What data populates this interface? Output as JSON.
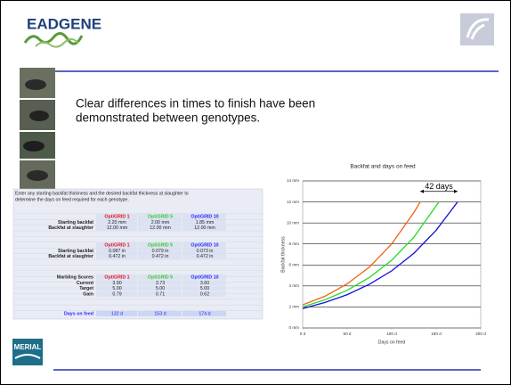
{
  "header": {
    "logo": "EADGENE"
  },
  "headline": [
    "Clear differences in times to finish have been",
    "demonstrated between genotypes."
  ],
  "table": {
    "intro": [
      "Enter any starting backfat thickness and the desired backfat thickness at slaughter to",
      "determine the days on feed required for each genotype."
    ],
    "groups": [
      {
        "columns": [
          "OptiGRID 1",
          "OptiGRID 5",
          "OptiGRID 10"
        ],
        "rows": [
          [
            "Starting backfat",
            "2.20 mm",
            "2.00 mm",
            "1.85 mm"
          ],
          [
            "Backfat at slaughter",
            "12.00 mm",
            "12.00 mm",
            "12.00 mm"
          ]
        ]
      },
      {
        "columns": [
          "OptiGRID 1",
          "OptiGRID 5",
          "OptiGRID 10"
        ],
        "rows": [
          [
            "Starting backfat",
            "0.087 in",
            "0.079 in",
            "0.073 in"
          ],
          [
            "Backfat at slaughter",
            "0.472 in",
            "0.472 in",
            "0.472 in"
          ]
        ]
      },
      {
        "label": "Marbling Scores",
        "columns": [
          "OptiGRID 1",
          "OptiGRID 5",
          "OptiGRID 10"
        ],
        "rows": [
          [
            "Current",
            "3.90",
            "3.73",
            "3.60"
          ],
          [
            "Target",
            "5.00",
            "5.00",
            "5.00"
          ],
          [
            "Gain",
            "0.79",
            "0.71",
            "0.62"
          ]
        ]
      },
      {
        "rows": [
          [
            "Days on feed",
            "132 d",
            "153 d",
            "174 d"
          ]
        ]
      }
    ],
    "column_colors": [
      "#e8141e",
      "#33cc33",
      "#2b2bff"
    ]
  },
  "chart_data": {
    "type": "line",
    "title": "Backfat and days on feed",
    "x_label": "Days on feed",
    "y_label": "Backfat thickness",
    "xlim": [
      0,
      200
    ],
    "ylim": [
      0,
      14
    ],
    "xticks": [
      {
        "value": 0,
        "label": "0 d"
      },
      {
        "value": 50,
        "label": "50 d"
      },
      {
        "value": 100,
        "label": "100 d"
      },
      {
        "value": 150,
        "label": "150 d"
      },
      {
        "value": 200,
        "label": "200 d"
      }
    ],
    "yticks": [
      {
        "value": 0,
        "label": "0 mm"
      },
      {
        "value": 2,
        "label": "2 mm"
      },
      {
        "value": 4,
        "label": "4 mm"
      },
      {
        "value": 6,
        "label": "6 mm"
      },
      {
        "value": 8,
        "label": "8 mm"
      },
      {
        "value": 10,
        "label": "10 mm"
      },
      {
        "value": 12,
        "label": "12 mm"
      },
      {
        "value": 14,
        "label": "14 mm"
      }
    ],
    "grid": true,
    "series": [
      {
        "color": "#f06010",
        "x": [
          0,
          25,
          50,
          75,
          100,
          125,
          132
        ],
        "values": [
          2.2,
          3.02,
          4.2,
          5.8,
          8.0,
          11.0,
          12.0
        ]
      },
      {
        "color": "#22dd22",
        "x": [
          0,
          25,
          50,
          75,
          100,
          125,
          153
        ],
        "values": [
          2.0,
          2.68,
          3.59,
          4.81,
          6.45,
          8.65,
          12.0
        ]
      },
      {
        "color": "#1010dd",
        "x": [
          0,
          25,
          50,
          75,
          100,
          125,
          150,
          174
        ],
        "values": [
          1.85,
          2.43,
          3.17,
          4.16,
          5.44,
          7.12,
          9.31,
          12.0
        ]
      }
    ],
    "annotation": {
      "text": "42 days",
      "x": [
        132,
        174
      ],
      "y": 13
    }
  },
  "footer": {
    "logo": "MERIAL"
  }
}
